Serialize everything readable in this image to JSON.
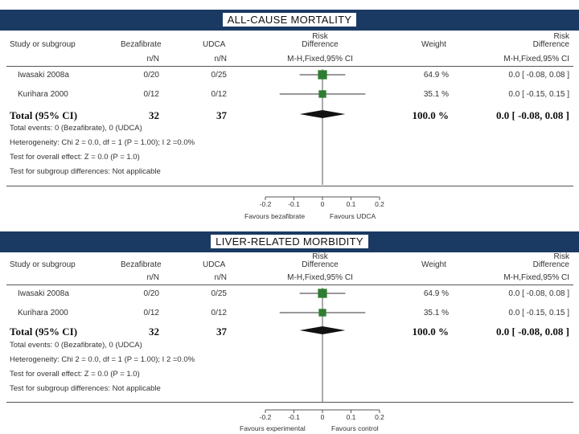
{
  "chart_data": [
    {
      "type": "forest",
      "title": "ALL-CAUSE MORTALITY",
      "columns": {
        "study": "Study or subgroup",
        "group1": "Bezafibrate",
        "group2": "UDCA",
        "n_label": "n/N",
        "effect_top": "Risk",
        "effect_mid": "Difference",
        "method": "M-H,Fixed,95% CI",
        "weight": "Weight",
        "result_top": "Risk",
        "result_mid": "Difference",
        "result_method": "M-H,Fixed,95% CI"
      },
      "studies": [
        {
          "name": "Iwasaki 2008a",
          "g1": "0/20",
          "g2": "0/25",
          "weight": "64.9 %",
          "ci": "0.0 [ -0.08, 0.08 ]",
          "rd": 0.0,
          "lo": -0.08,
          "hi": 0.08,
          "w": 64.9
        },
        {
          "name": "Kurihara 2000",
          "g1": "0/12",
          "g2": "0/12",
          "weight": "35.1 %",
          "ci": "0.0 [ -0.15, 0.15 ]",
          "rd": 0.0,
          "lo": -0.15,
          "hi": 0.15,
          "w": 35.1
        }
      ],
      "total": {
        "label": "Total (95% CI)",
        "g1": "32",
        "g2": "37",
        "weight": "100.0 %",
        "ci": "0.0 [ -0.08, 0.08 ]",
        "rd": 0.0,
        "lo": -0.08,
        "hi": 0.08
      },
      "notes": [
        "Total events: 0 (Bezafibrate), 0 (UDCA)",
        "Heterogeneity: Chi 2 = 0.0, df = 1 (P = 1.00); I 2 =0.0%",
        "Test for overall effect: Z = 0.0 (P = 1.0)",
        "Test for subgroup differences: Not applicable"
      ],
      "xaxis": {
        "ticks": [
          -0.2,
          -0.1,
          0,
          0.1,
          0.2
        ],
        "tick_labels": [
          "-0.2",
          "-0.1",
          "0",
          "0.1",
          "0.2"
        ],
        "range": [
          -0.2,
          0.2
        ]
      },
      "favours_left": "Favours bezafibrate",
      "favours_right": "Favours UDCA",
      "colors": {
        "study_marker": "#2e7d32",
        "diamond": "#111111"
      }
    },
    {
      "type": "forest",
      "title": "LIVER-RELATED MORBIDITY",
      "columns": {
        "study": "Study or subgroup",
        "group1": "Bezafibrate",
        "group2": "UDCA",
        "n_label": "n/N",
        "effect_top": "Risk",
        "effect_mid": "Difference",
        "method": "M-H,Fixed,95% CI",
        "weight": "Weight",
        "result_top": "Risk",
        "result_mid": "Difference",
        "result_method": "M-H,Fixed,95% CI"
      },
      "studies": [
        {
          "name": "Iwasaki 2008a",
          "g1": "0/20",
          "g2": "0/25",
          "weight": "64.9 %",
          "ci": "0.0 [ -0.08, 0.08 ]",
          "rd": 0.0,
          "lo": -0.08,
          "hi": 0.08,
          "w": 64.9
        },
        {
          "name": "Kurihara 2000",
          "g1": "0/12",
          "g2": "0/12",
          "weight": "35.1 %",
          "ci": "0.0 [ -0.15, 0.15 ]",
          "rd": 0.0,
          "lo": -0.15,
          "hi": 0.15,
          "w": 35.1
        }
      ],
      "total": {
        "label": "Total (95% CI)",
        "g1": "32",
        "g2": "37",
        "weight": "100.0 %",
        "ci": "0.0 [ -0.08, 0.08 ]",
        "rd": 0.0,
        "lo": -0.08,
        "hi": 0.08
      },
      "notes": [
        "Total events: 0 (Bezafibrate), 0 (UDCA)",
        "Heterogeneity: Chi 2 = 0.0, df = 1 (P = 1.00); I 2 =0.0%",
        "Test for overall effect: Z = 0.0 (P = 1.0)",
        "Test for subgroup differences: Not applicable"
      ],
      "xaxis": {
        "ticks": [
          -0.2,
          -0.1,
          0,
          0.1,
          0.2
        ],
        "tick_labels": [
          "-0.2",
          "-0.1",
          "0",
          "0.1",
          "0.2"
        ],
        "range": [
          -0.2,
          0.2
        ]
      },
      "favours_left": "Favours experimental",
      "favours_right": "Favours control",
      "colors": {
        "study_marker": "#2e7d32",
        "diamond": "#111111"
      }
    }
  ]
}
